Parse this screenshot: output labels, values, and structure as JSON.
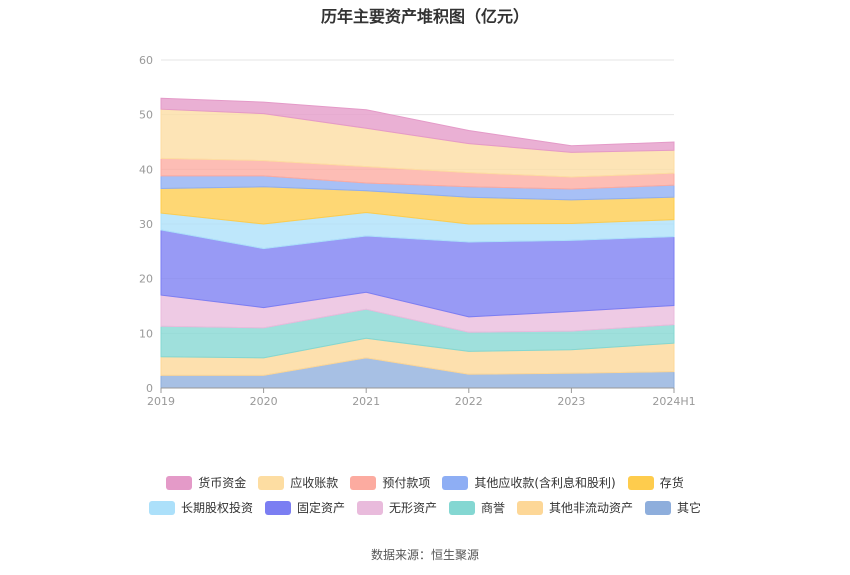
{
  "title": "历年主要资产堆积图（亿元）",
  "source": "数据来源：恒生聚源",
  "chart_data": {
    "type": "area",
    "stacked": true,
    "categories": [
      "2019",
      "2020",
      "2021",
      "2022",
      "2023",
      "2024H1"
    ],
    "ylim": [
      0,
      60
    ],
    "yticks": [
      0,
      10,
      20,
      30,
      40,
      50,
      60
    ],
    "grid": true,
    "legend_position": "bottom",
    "series": [
      {
        "name": "其它",
        "color": "#8eaedc",
        "values": [
          2.3,
          2.3,
          5.5,
          2.5,
          2.7,
          3.0
        ]
      },
      {
        "name": "其他非流动资产",
        "color": "#fdd797",
        "values": [
          3.4,
          3.2,
          3.6,
          4.2,
          4.3,
          5.2
        ]
      },
      {
        "name": "商誉",
        "color": "#84d7d2",
        "values": [
          5.6,
          5.5,
          5.3,
          3.5,
          3.4,
          3.4
        ]
      },
      {
        "name": "无形资产",
        "color": "#e9bbdc",
        "values": [
          5.7,
          3.7,
          3.1,
          2.8,
          3.6,
          3.5
        ]
      },
      {
        "name": "固定资产",
        "color": "#7b7ef2",
        "values": [
          11.9,
          10.8,
          10.3,
          13.7,
          13.0,
          12.6
        ]
      },
      {
        "name": "长期股权投资",
        "color": "#ace0fa",
        "values": [
          3.1,
          4.5,
          4.3,
          3.3,
          3.1,
          3.1
        ]
      },
      {
        "name": "存货",
        "color": "#fecc4d",
        "values": [
          4.5,
          6.8,
          4.0,
          4.9,
          4.3,
          4.1
        ]
      },
      {
        "name": "其他应收款(含利息和股利)",
        "color": "#8eaef4",
        "values": [
          2.3,
          2.0,
          1.4,
          1.9,
          2.0,
          2.2
        ]
      },
      {
        "name": "预付款项",
        "color": "#fcaba0",
        "values": [
          3.2,
          2.8,
          3.0,
          2.6,
          2.2,
          2.2
        ]
      },
      {
        "name": "应收账款",
        "color": "#fddda2",
        "values": [
          9.0,
          8.6,
          7.0,
          5.3,
          4.5,
          4.2
        ]
      },
      {
        "name": "货币资金",
        "color": "#e49ac8",
        "values": [
          2.0,
          2.1,
          3.4,
          2.4,
          1.2,
          1.5
        ]
      }
    ]
  },
  "legend": {
    "row1": [
      {
        "name": "货币资金",
        "color": "#e49ac8"
      },
      {
        "name": "应收账款",
        "color": "#fddda2"
      },
      {
        "name": "预付款项",
        "color": "#fcaba0"
      },
      {
        "name": "其他应收款(含利息和股利)",
        "color": "#8eaef4"
      },
      {
        "name": "存货",
        "color": "#fecc4d"
      }
    ],
    "row2": [
      {
        "name": "长期股权投资",
        "color": "#ace0fa"
      },
      {
        "name": "固定资产",
        "color": "#7b7ef2"
      },
      {
        "name": "无形资产",
        "color": "#e9bbdc"
      },
      {
        "name": "商誉",
        "color": "#84d7d2"
      },
      {
        "name": "其他非流动资产",
        "color": "#fdd797"
      },
      {
        "name": "其它",
        "color": "#8eaedc"
      }
    ]
  }
}
